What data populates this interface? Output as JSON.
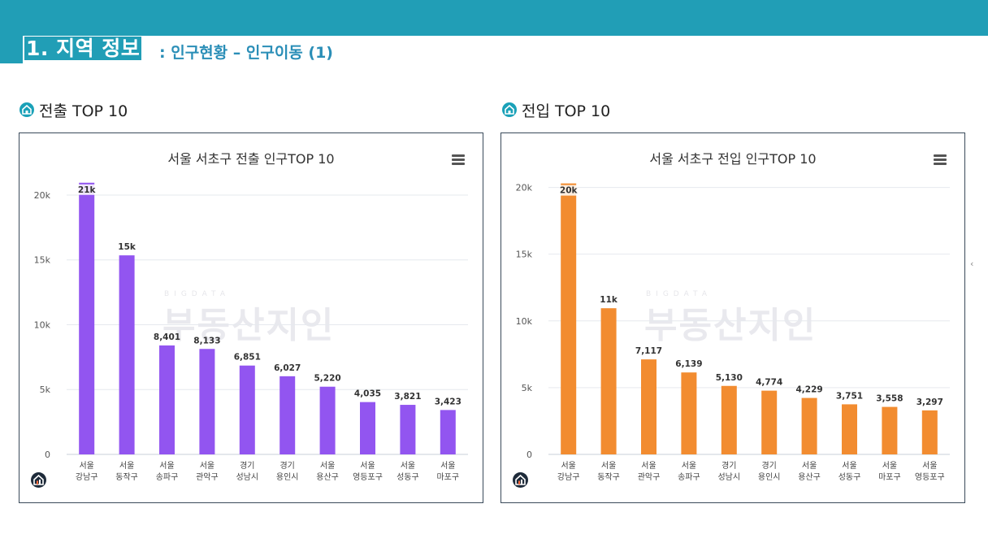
{
  "header": {
    "title_main": "1. 지역 정보",
    "title_sub": ": 인구현황 – 인구이동 (1)"
  },
  "sections": {
    "left_heading": "전출 TOP 10",
    "right_heading": "전입 TOP 10"
  },
  "watermark": {
    "small": "BIGDATA",
    "text": "부동산지인"
  },
  "colors": {
    "header_band": "#219eb6",
    "left_bars": "#9255f0",
    "right_bars": "#f28c30",
    "heading_accent": "#1aa1b8"
  },
  "chart_data": [
    {
      "type": "bar",
      "title": "서울 서초구 전출 인구TOP 10",
      "categories": [
        [
          "서울",
          "강남구"
        ],
        [
          "서울",
          "동작구"
        ],
        [
          "서울",
          "송파구"
        ],
        [
          "서울",
          "관악구"
        ],
        [
          "경기",
          "성남시"
        ],
        [
          "경기",
          "용인시"
        ],
        [
          "서울",
          "용산구"
        ],
        [
          "서울",
          "영등포구"
        ],
        [
          "서울",
          "성동구"
        ],
        [
          "서울",
          "마포구"
        ]
      ],
      "values": [
        20950,
        15350,
        8401,
        8133,
        6851,
        6027,
        5220,
        4035,
        3821,
        3423
      ],
      "data_labels": [
        "21k",
        "15k",
        "8,401",
        "8,133",
        "6,851",
        "6,027",
        "5,220",
        "4,035",
        "3,821",
        "3,423"
      ],
      "y_ticks": [
        0,
        5000,
        10000,
        15000,
        20000
      ],
      "y_tick_labels": [
        "0",
        "5k",
        "10k",
        "15k",
        "20k"
      ],
      "ylim": [
        0,
        21000
      ],
      "grid": true,
      "color": "#9255f0"
    },
    {
      "type": "bar",
      "title": "서울 서초구 전입 인구TOP 10",
      "categories": [
        [
          "서울",
          "강남구"
        ],
        [
          "서울",
          "동작구"
        ],
        [
          "서울",
          "관악구"
        ],
        [
          "서울",
          "송파구"
        ],
        [
          "경기",
          "성남시"
        ],
        [
          "경기",
          "용인시"
        ],
        [
          "서울",
          "용산구"
        ],
        [
          "서울",
          "성동구"
        ],
        [
          "서울",
          "마포구"
        ],
        [
          "서울",
          "영등포구"
        ]
      ],
      "values": [
        20300,
        10950,
        7117,
        6139,
        5130,
        4774,
        4229,
        3751,
        3558,
        3297
      ],
      "data_labels": [
        "20k",
        "11k",
        "7,117",
        "6,139",
        "5,130",
        "4,774",
        "4,229",
        "3,751",
        "3,558",
        "3,297"
      ],
      "y_ticks": [
        0,
        5000,
        10000,
        15000,
        20000
      ],
      "y_tick_labels": [
        "0",
        "5k",
        "10k",
        "15k",
        "20k"
      ],
      "ylim": [
        0,
        20400
      ],
      "grid": true,
      "color": "#f28c30"
    }
  ]
}
